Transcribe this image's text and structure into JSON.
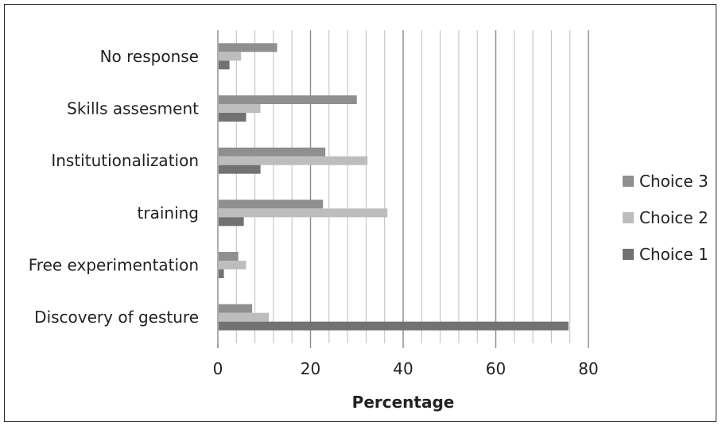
{
  "chart_data": {
    "type": "bar",
    "orientation": "horizontal",
    "categories": [
      "No response",
      "Skills assesment",
      "Institutionalization",
      "training",
      "Free experimentation",
      "Discovery of gesture"
    ],
    "series": [
      {
        "name": "Choice 3",
        "values": [
          12.8,
          30.0,
          23.2,
          22.7,
          4.4,
          7.4
        ]
      },
      {
        "name": "Choice 2",
        "values": [
          5.0,
          9.2,
          32.3,
          36.6,
          6.1,
          11.0
        ]
      },
      {
        "name": "Choice 1",
        "values": [
          2.5,
          6.1,
          9.2,
          5.6,
          1.3,
          75.7
        ]
      }
    ],
    "xlabel": "Percentage",
    "ylabel": "",
    "xlim": [
      0,
      80
    ],
    "xticks": [
      "0",
      "20",
      "40",
      "60",
      "80"
    ],
    "minor_grid_step": 4,
    "grid": true,
    "legend_position": "right",
    "colors": {
      "Choice 3": "#8f8f8f",
      "Choice 2": "#bdbdbd",
      "Choice 1": "#727272"
    }
  }
}
